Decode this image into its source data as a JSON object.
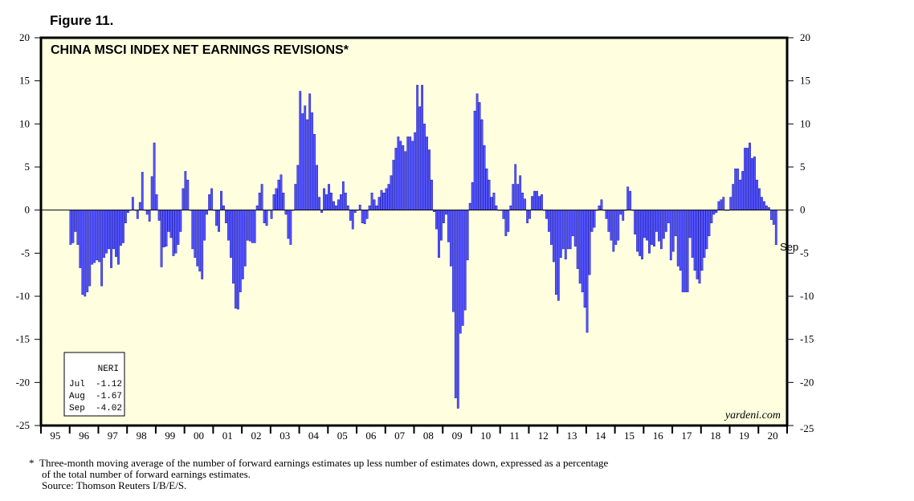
{
  "figure_label": "Figure 11.",
  "footnote": {
    "marker": "*",
    "line1": "Three-month moving average of the number of forward earnings estimates up less number of estimates down, expressed as a percentage",
    "line2": "of the total number of forward earnings estimates.",
    "source": "Source: Thomson Reuters I/B/E/S."
  },
  "chart_data": {
    "type": "bar",
    "title": "CHINA MSCI INDEX NET EARNINGS REVISIONS*",
    "ylim": [
      -25,
      20
    ],
    "ytick_step": 5,
    "year_start": 1995,
    "year_labels": [
      "95",
      "96",
      "97",
      "98",
      "99",
      "00",
      "01",
      "02",
      "03",
      "04",
      "05",
      "06",
      "07",
      "08",
      "09",
      "10",
      "11",
      "12",
      "13",
      "14",
      "15",
      "16",
      "17",
      "18",
      "19",
      "20"
    ],
    "data_start": "1996-01",
    "last_point_label": "Sep",
    "legend_box": {
      "title": "NERI",
      "rows": [
        "Jul  -1.12",
        "Aug  -1.67",
        "Sep  -4.02"
      ]
    },
    "watermark": "yardeni.com",
    "grid": false,
    "bar_color": "#5555ff",
    "background_color": "#ffffe0",
    "series": [
      {
        "name": "NERI",
        "values": [
          -4.0,
          -3.8,
          -2.5,
          -4.0,
          -6.7,
          -9.8,
          -10.0,
          -9.5,
          -8.8,
          -6.3,
          -6.1,
          -5.8,
          -6.0,
          -8.8,
          -5.5,
          -5.0,
          -4.5,
          -6.7,
          -4.5,
          -5.4,
          -6.3,
          -4.1,
          -3.8,
          -1.5,
          -0.3,
          0.0,
          1.5,
          0.0,
          -1.0,
          0.9,
          4.4,
          0.0,
          -0.5,
          -1.3,
          3.9,
          7.8,
          1.8,
          -1.2,
          -6.6,
          -4.3,
          -4.2,
          -2.5,
          -3.2,
          -5.3,
          -5.0,
          -4.0,
          -2.5,
          2.5,
          4.5,
          3.5,
          0.0,
          -4.5,
          -5.5,
          -6.5,
          -7.1,
          -8.0,
          -3.5,
          -0.5,
          1.8,
          2.5,
          0.0,
          -1.8,
          -2.5,
          2.2,
          0.5,
          -1.5,
          -3.5,
          -5.5,
          -8.5,
          -11.4,
          -11.5,
          -9.5,
          -8.0,
          -6.5,
          -3.5,
          -3.6,
          -3.8,
          -3.8,
          0.5,
          2.0,
          3.0,
          -1.5,
          -1.8,
          0.0,
          -1.0,
          1.8,
          2.5,
          3.5,
          4.1,
          2.0,
          -0.5,
          -3.3,
          -4.0,
          0.0,
          3.0,
          5.2,
          13.8,
          11.2,
          12.1,
          10.5,
          13.5,
          11.3,
          8.8,
          5.2,
          1.5,
          -0.3,
          2.5,
          1.8,
          3.0,
          2.0,
          1.0,
          0.5,
          1.2,
          1.8,
          3.3,
          2.0,
          0.5,
          -1.2,
          -2.2,
          -0.3,
          0.0,
          0.6,
          -1.5,
          -1.6,
          -1.0,
          0.5,
          2.0,
          1.2,
          0.5,
          1.5,
          2.3,
          2.0,
          2.5,
          3.0,
          4.0,
          5.8,
          7.2,
          8.5,
          8.0,
          7.5,
          6.8,
          8.5,
          8.5,
          8.0,
          9.0,
          14.5,
          12.0,
          14.5,
          10.0,
          8.5,
          7.0,
          3.5,
          -0.2,
          -2.2,
          -5.5,
          -3.5,
          -1.5,
          -0.5,
          -3.7,
          -6.5,
          -11.8,
          -21.8,
          -23.0,
          -14.3,
          -13.4,
          -11.6,
          -5.8,
          0.8,
          3.2,
          11.5,
          13.5,
          12.5,
          10.5,
          7.5,
          4.8,
          3.5,
          1.5,
          2.0,
          0.5,
          0.0,
          0.0,
          -1.0,
          -3.0,
          -2.5,
          0.5,
          3.0,
          5.3,
          3.0,
          4.0,
          2.0,
          1.3,
          -1.5,
          -1.0,
          1.6,
          2.2,
          2.2,
          1.6,
          1.8,
          0.0,
          -1.0,
          -2.5,
          -4.0,
          -6.0,
          -9.8,
          -10.5,
          -5.5,
          -4.5,
          -5.7,
          -4.5,
          -4.5,
          -3.0,
          -4.2,
          -6.8,
          -8.5,
          -9.5,
          -11.3,
          -14.2,
          -7.5,
          -2.5,
          -2.0,
          0.0,
          0.5,
          1.2,
          0.0,
          -1.0,
          -2.5,
          -3.5,
          -4.8,
          -4.0,
          -3.5,
          -0.5,
          -1.2,
          0.0,
          2.7,
          2.2,
          0.0,
          -2.8,
          -4.8,
          -5.3,
          -5.7,
          -3.2,
          -3.5,
          -5.0,
          -4.0,
          -4.2,
          -2.5,
          -3.6,
          -4.5,
          -3.3,
          -2.5,
          -1.5,
          -5.8,
          -4.8,
          -3.0,
          -6.5,
          -7.0,
          -9.5,
          -9.5,
          -9.5,
          -3.2,
          -5.5,
          -7.0,
          -8.0,
          -8.5,
          -7.0,
          -5.5,
          -4.5,
          -3.0,
          -1.5,
          -0.5,
          -0.3,
          1.0,
          1.2,
          1.5,
          0.0,
          0.0,
          1.5,
          3.0,
          4.8,
          4.8,
          3.5,
          4.5,
          7.2,
          7.2,
          7.8,
          6.0,
          6.2,
          3.5,
          2.5,
          1.5,
          1.0,
          0.5,
          0.3,
          -1.12,
          -1.67,
          -4.02
        ]
      }
    ]
  }
}
